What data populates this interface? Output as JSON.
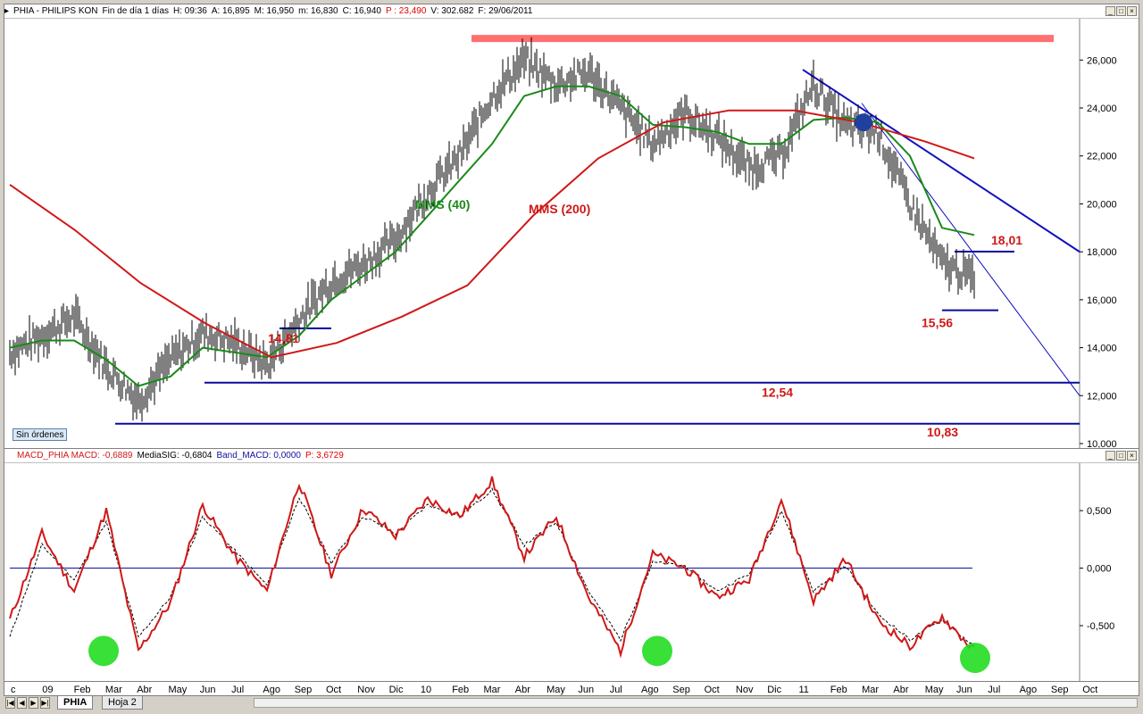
{
  "price_header": {
    "symbol": "PHIA - PHILIPS KON",
    "timeframe": "Fin de día 1 días",
    "hour": "H: 09:36",
    "open": "A: 16,895",
    "high": "M: 16,950",
    "low": "m: 16,830",
    "close": "C: 16,940",
    "price": "P : 23,490",
    "volume": "V: 302.682",
    "date": "F: 29/06/2011"
  },
  "macd_header": {
    "macd": "MACD_PHIA  MACD: -0,6889",
    "signal": "MediaSIG: -0,6804",
    "band": "Band_MACD: 0,0000",
    "price": "P: 3,6729"
  },
  "window_buttons": [
    "_",
    "□",
    "×"
  ],
  "sin_ordenes": "Sin órdenes",
  "tabs": [
    "PHIA",
    "Hoja 2"
  ],
  "nav_buttons": [
    "|◀",
    "◀",
    "▶",
    "▶|"
  ],
  "colors": {
    "price_bars": "#000000",
    "mms40": "#1a8a1a",
    "mms200": "#d01818",
    "support": "#0a0a9a",
    "resistance": "#ff7070",
    "annotation": "#d01818",
    "macd": "#d01818",
    "signal": "#000000",
    "circles": "#22dd22"
  },
  "chart_data": [
    {
      "type": "line",
      "name": "PHIA price (daily)",
      "ylim": [
        10,
        27.5
      ],
      "y_ticks": [
        "26,000",
        "24,000",
        "22,000",
        "20,000",
        "18,000",
        "16,000",
        "14,000",
        "12,000",
        "10,000"
      ],
      "x_ticks": [
        "c",
        "09",
        "Feb",
        "Mar",
        "Abr",
        "May",
        "Jun",
        "Jul",
        "Ago",
        "Sep",
        "Oct",
        "Nov",
        "Dic",
        "10",
        "Feb",
        "Mar",
        "Abr",
        "May",
        "Jun",
        "Jul",
        "Ago",
        "Sep",
        "Oct",
        "Nov",
        "Dic",
        "11",
        "Feb",
        "Mar",
        "Abr",
        "May",
        "Jun",
        "Jul",
        "Ago",
        "Sep",
        "Oct"
      ],
      "series": [
        {
          "name": "PHIA",
          "x": [
            0,
            1,
            2,
            3,
            4,
            5,
            6,
            7,
            8,
            9,
            10,
            11,
            12,
            13,
            14,
            15,
            16,
            17,
            18,
            19,
            20,
            21,
            22,
            23,
            24,
            25,
            26,
            27,
            28,
            29,
            30
          ],
          "values": [
            13.8,
            14.5,
            15.3,
            13.2,
            11.8,
            13.5,
            14.6,
            14.2,
            13.3,
            15.2,
            16.8,
            17.5,
            18.5,
            20.5,
            22.0,
            24.5,
            26.0,
            25.0,
            25.5,
            24.0,
            22.5,
            23.8,
            22.8,
            21.5,
            22.0,
            25.0,
            23.2,
            23.0,
            20.0,
            17.5,
            16.9
          ]
        },
        {
          "name": "MMS (40)",
          "x": [
            0,
            1,
            2,
            3,
            4,
            5,
            6,
            7,
            8,
            9,
            10,
            11,
            12,
            13,
            14,
            15,
            16,
            17,
            18,
            19,
            20,
            21,
            22,
            23,
            24,
            25,
            26,
            27,
            28,
            29,
            30
          ],
          "values": [
            14.0,
            14.3,
            14.3,
            13.5,
            12.4,
            12.8,
            14.0,
            13.8,
            13.6,
            14.5,
            16.0,
            17.0,
            18.0,
            19.5,
            21.0,
            22.5,
            24.5,
            24.9,
            24.9,
            24.5,
            23.3,
            23.2,
            23.0,
            22.5,
            22.5,
            23.5,
            23.6,
            23.4,
            22.0,
            19.0,
            18.7
          ]
        },
        {
          "name": "MMS (200)",
          "x": [
            0,
            2,
            4,
            6,
            8,
            10,
            12,
            14,
            16,
            18,
            20,
            22,
            24,
            26,
            28,
            29.5
          ],
          "values": [
            20.8,
            18.9,
            16.7,
            15.0,
            13.6,
            14.2,
            15.3,
            16.6,
            19.5,
            21.9,
            23.4,
            23.9,
            23.9,
            23.4,
            22.6,
            21.9
          ]
        }
      ],
      "annotations": [
        {
          "text": "MMS (40)",
          "color": "green"
        },
        {
          "text": "MMS (200)",
          "color": "red"
        },
        {
          "text": "14,81",
          "value": 14.81
        },
        {
          "text": "12,54",
          "value": 12.54
        },
        {
          "text": "10,83",
          "value": 10.83
        },
        {
          "text": "18,01",
          "value": 18.01
        },
        {
          "text": "15,56",
          "value": 15.56
        }
      ],
      "resistance_level": 26.9,
      "support_levels": [
        14.81,
        12.54,
        10.83,
        18.01,
        15.56
      ]
    },
    {
      "type": "line",
      "name": "MACD_PHIA",
      "ylim": [
        -0.95,
        0.85
      ],
      "y_ticks": [
        "0,500",
        "0,000",
        "-0,500"
      ],
      "series": [
        {
          "name": "MACD",
          "x": [
            0,
            1,
            2,
            3,
            4,
            5,
            6,
            7,
            8,
            9,
            10,
            11,
            12,
            13,
            14,
            15,
            16,
            17,
            18,
            19,
            20,
            21,
            22,
            23,
            24,
            25,
            26,
            27,
            28,
            29,
            30
          ],
          "values": [
            -0.45,
            0.3,
            -0.2,
            0.5,
            -0.72,
            -0.3,
            0.55,
            0.1,
            -0.2,
            0.75,
            -0.05,
            0.52,
            0.28,
            0.6,
            0.45,
            0.76,
            0.1,
            0.45,
            -0.25,
            -0.72,
            0.12,
            0.0,
            -0.25,
            -0.1,
            0.6,
            -0.28,
            0.08,
            -0.45,
            -0.68,
            -0.42,
            -0.72
          ]
        },
        {
          "name": "MediaSIG",
          "x": [
            0,
            1,
            2,
            3,
            4,
            5,
            6,
            7,
            8,
            9,
            10,
            11,
            12,
            13,
            14,
            15,
            16,
            17,
            18,
            19,
            20,
            21,
            22,
            23,
            24,
            25,
            26,
            27,
            28,
            29,
            30
          ],
          "values": [
            -0.6,
            0.2,
            -0.1,
            0.4,
            -0.6,
            -0.25,
            0.45,
            0.15,
            -0.15,
            0.62,
            0.05,
            0.45,
            0.3,
            0.55,
            0.45,
            0.68,
            0.2,
            0.4,
            -0.2,
            -0.62,
            0.05,
            0.02,
            -0.2,
            -0.05,
            0.5,
            -0.2,
            0.02,
            -0.4,
            -0.62,
            -0.45,
            -0.68
          ]
        }
      ],
      "band": 0.0
    }
  ]
}
